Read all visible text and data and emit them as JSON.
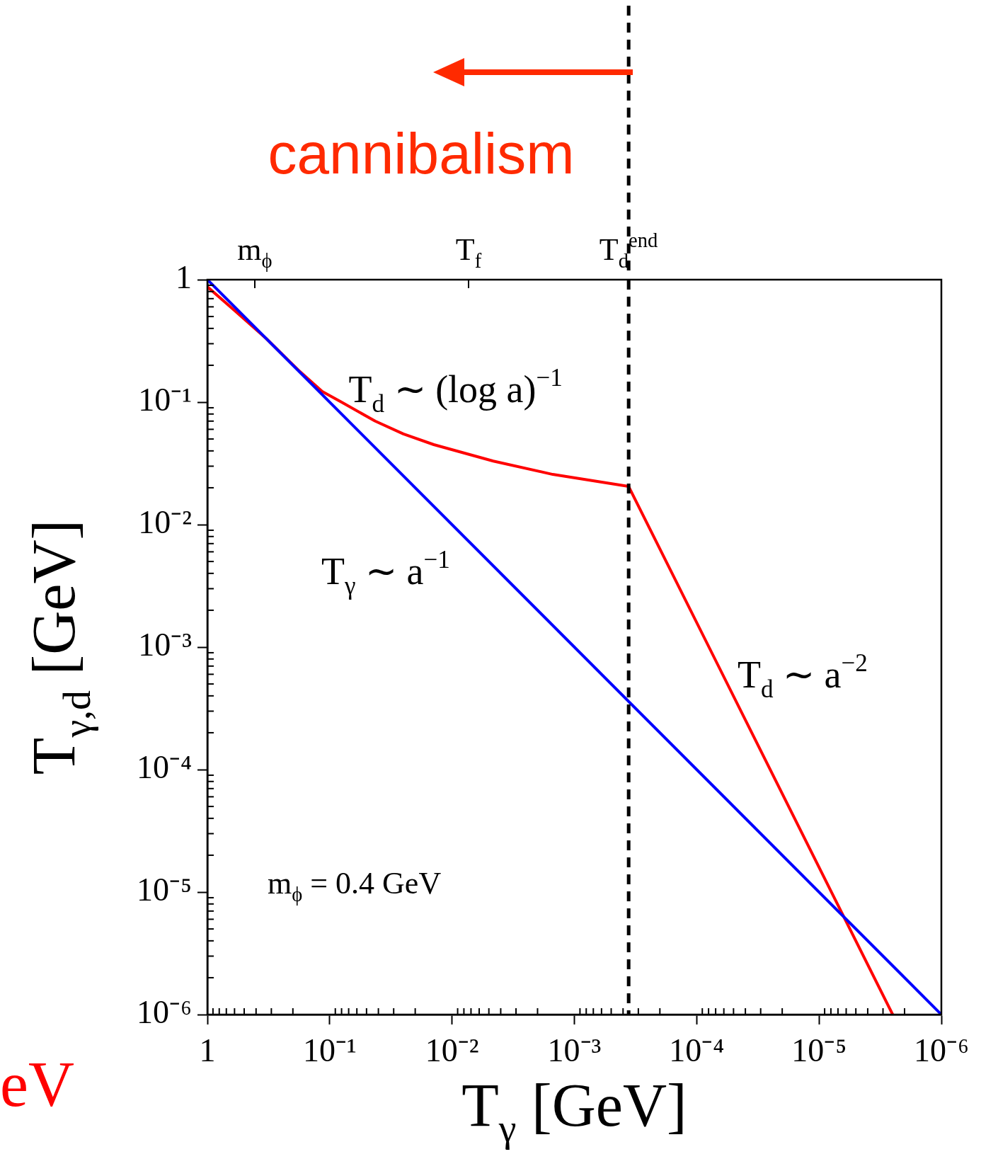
{
  "chart_data": {
    "type": "line",
    "xlabel": "T$_{γ}$ [GeV]",
    "ylabel": "T$_{γ,d}$ [GeV]",
    "log": "xy",
    "legend": false,
    "line_style": "solid",
    "marker": "none",
    "xlim": [
      1,
      1e-06
    ],
    "ylim": [
      1e-06,
      1
    ],
    "xticks": [
      1,
      {
        "value": 0.1,
        "label": "10⁻¹"
      },
      {
        "value": 0.01,
        "label": "10⁻²"
      },
      {
        "value": 0.001,
        "label": "10⁻³"
      },
      {
        "value": 0.0001,
        "label": "10⁻⁴"
      },
      {
        "value": 1e-05,
        "label": "10⁻⁵"
      },
      {
        "value": 1e-06,
        "label": "10⁻⁶"
      }
    ],
    "yticks": [
      {
        "value": 1e-06,
        "label": "10⁻⁶"
      },
      {
        "value": 1e-05,
        "label": "10⁻⁵"
      },
      {
        "value": 0.0001,
        "label": "10⁻⁴"
      },
      {
        "value": 0.001,
        "label": "10⁻³"
      },
      {
        "value": 0.01,
        "label": "10⁻²"
      },
      {
        "value": 0.1,
        "label": "10⁻¹"
      },
      1
    ],
    "series": [
      {
        "color": "#0000ff",
        "x": [
          1,
          1e-06
        ],
        "values": [
          1,
          1e-06
        ]
      },
      {
        "color": "#ff0000",
        "x": [
          1,
          0.6,
          0.33,
          0.18,
          0.115,
          0.08,
          0.0425,
          0.025,
          0.0141,
          0.0046,
          0.0015,
          0.00036,
          2.5e-06
        ],
        "values": [
          0.875,
          0.56,
          0.33,
          0.182,
          0.122,
          0.1,
          0.07,
          0.055,
          0.045,
          0.033,
          0.0257,
          0.0205,
          1e-06
        ]
      }
    ],
    "ref_lines": [
      {
        "axis": "x",
        "value": 0.00036,
        "color": "#000000",
        "line_style": "dashed"
      }
    ],
    "annotations": [
      "cannibalism",
      "m$_{ϕ}$",
      "T$_{f}$",
      "T$_{d}$$^{end}$",
      {
        "text": "T$_{d}$ ∼ (log a)$^{−1}$",
        "x": 0.07,
        "y": 0.1
      },
      "T$_{γ}$ ∼ a$^{−1}$",
      "T$_{d}$ ∼ a$^{−2}$",
      "m$_{ϕ}$ = 0.4 GeV",
      "eV"
    ]
  }
}
